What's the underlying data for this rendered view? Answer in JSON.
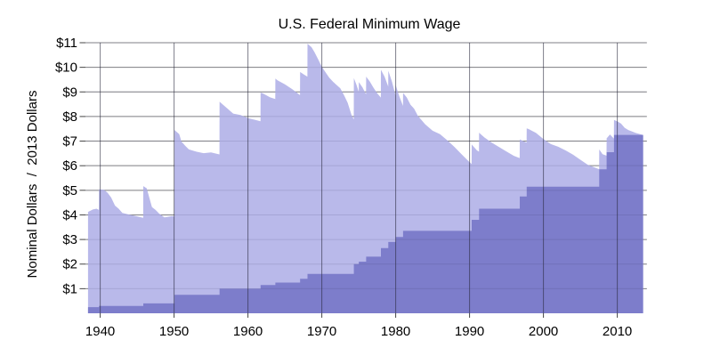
{
  "page": {
    "background": "#ffffff"
  },
  "chart_data": {
    "type": "area",
    "title": "U.S. Federal Minimum Wage",
    "ylabel": "Nominal Dollars  /  2013 Dollars",
    "xlabel": "",
    "xlim": [
      1938,
      2014
    ],
    "ylim": [
      0,
      11
    ],
    "grid": true,
    "legend": "none",
    "x_ticks": [
      1940,
      1950,
      1960,
      1970,
      1980,
      1990,
      2000,
      2010
    ],
    "y_ticks": [
      {
        "value": 1,
        "label": "$1"
      },
      {
        "value": 2,
        "label": "$2"
      },
      {
        "value": 3,
        "label": "$3"
      },
      {
        "value": 4,
        "label": "$4"
      },
      {
        "value": 5,
        "label": "$5"
      },
      {
        "value": 6,
        "label": "$6"
      },
      {
        "value": 7,
        "label": "$7"
      },
      {
        "value": 8,
        "label": "$8"
      },
      {
        "value": 9,
        "label": "$9"
      },
      {
        "value": 10,
        "label": "$10"
      },
      {
        "value": 11,
        "label": "$11"
      }
    ],
    "series": [
      {
        "name": "2013 Dollars",
        "type": "area",
        "color": "#b9b9ea",
        "points": [
          [
            1938.35,
            4.12
          ],
          [
            1939.0,
            4.22
          ],
          [
            1939.5,
            4.25
          ],
          [
            1939.82,
            4.2
          ],
          [
            1939.83,
            5.04
          ],
          [
            1940.5,
            5.02
          ],
          [
            1941.0,
            4.9
          ],
          [
            1941.5,
            4.7
          ],
          [
            1942.0,
            4.38
          ],
          [
            1942.5,
            4.25
          ],
          [
            1943.0,
            4.08
          ],
          [
            1944.0,
            4.01
          ],
          [
            1945.0,
            3.94
          ],
          [
            1945.82,
            3.88
          ],
          [
            1945.83,
            5.17
          ],
          [
            1946.3,
            5.08
          ],
          [
            1946.6,
            4.75
          ],
          [
            1947.0,
            4.32
          ],
          [
            1947.5,
            4.2
          ],
          [
            1948.0,
            4.05
          ],
          [
            1948.7,
            3.9
          ],
          [
            1949.3,
            3.93
          ],
          [
            1949.8,
            3.95
          ],
          [
            1950.05,
            3.93
          ],
          [
            1950.06,
            7.45
          ],
          [
            1950.7,
            7.28
          ],
          [
            1951.0,
            6.98
          ],
          [
            1951.6,
            6.78
          ],
          [
            1952.0,
            6.66
          ],
          [
            1953.0,
            6.57
          ],
          [
            1954.0,
            6.51
          ],
          [
            1955.0,
            6.54
          ],
          [
            1956.15,
            6.46
          ],
          [
            1956.16,
            8.6
          ],
          [
            1957.0,
            8.38
          ],
          [
            1958.0,
            8.12
          ],
          [
            1959.0,
            8.06
          ],
          [
            1960.0,
            7.93
          ],
          [
            1961.0,
            7.86
          ],
          [
            1961.7,
            7.81
          ],
          [
            1961.71,
            8.97
          ],
          [
            1962.0,
            8.94
          ],
          [
            1963.0,
            8.78
          ],
          [
            1963.7,
            8.71
          ],
          [
            1963.71,
            9.54
          ],
          [
            1964.0,
            9.47
          ],
          [
            1965.0,
            9.31
          ],
          [
            1966.0,
            9.11
          ],
          [
            1967.05,
            8.87
          ],
          [
            1967.06,
            9.81
          ],
          [
            1967.6,
            9.7
          ],
          [
            1968.05,
            9.62
          ],
          [
            1968.06,
            10.96
          ],
          [
            1968.6,
            10.82
          ],
          [
            1969.0,
            10.62
          ],
          [
            1969.5,
            10.33
          ],
          [
            1970.0,
            10.02
          ],
          [
            1970.5,
            9.8
          ],
          [
            1971.0,
            9.58
          ],
          [
            1971.5,
            9.42
          ],
          [
            1972.0,
            9.28
          ],
          [
            1972.5,
            9.15
          ],
          [
            1973.0,
            8.87
          ],
          [
            1973.5,
            8.56
          ],
          [
            1974.0,
            8.08
          ],
          [
            1974.33,
            7.88
          ],
          [
            1974.34,
            9.56
          ],
          [
            1974.7,
            9.28
          ],
          [
            1975.0,
            9.0
          ],
          [
            1975.01,
            9.4
          ],
          [
            1975.5,
            9.18
          ],
          [
            1975.99,
            8.9
          ],
          [
            1976.0,
            9.62
          ],
          [
            1976.5,
            9.42
          ],
          [
            1977.0,
            9.17
          ],
          [
            1977.5,
            8.95
          ],
          [
            1977.99,
            8.77
          ],
          [
            1978.0,
            9.9
          ],
          [
            1978.5,
            9.62
          ],
          [
            1978.99,
            9.22
          ],
          [
            1979.0,
            9.86
          ],
          [
            1979.5,
            9.42
          ],
          [
            1979.99,
            8.85
          ],
          [
            1980.0,
            9.27
          ],
          [
            1980.5,
            8.82
          ],
          [
            1980.99,
            8.43
          ],
          [
            1981.0,
            8.96
          ],
          [
            1981.5,
            8.77
          ],
          [
            1982.0,
            8.48
          ],
          [
            1982.5,
            8.32
          ],
          [
            1983.0,
            8.03
          ],
          [
            1984.0,
            7.68
          ],
          [
            1985.0,
            7.42
          ],
          [
            1986.0,
            7.28
          ],
          [
            1987.0,
            7.03
          ],
          [
            1988.0,
            6.75
          ],
          [
            1989.0,
            6.44
          ],
          [
            1990.0,
            6.14
          ],
          [
            1990.28,
            6.07
          ],
          [
            1990.29,
            6.86
          ],
          [
            1991.0,
            6.62
          ],
          [
            1991.28,
            6.57
          ],
          [
            1991.29,
            7.34
          ],
          [
            1992.0,
            7.15
          ],
          [
            1993.0,
            6.94
          ],
          [
            1994.0,
            6.76
          ],
          [
            1995.0,
            6.58
          ],
          [
            1996.0,
            6.4
          ],
          [
            1996.78,
            6.31
          ],
          [
            1996.79,
            7.07
          ],
          [
            1997.5,
            6.97
          ],
          [
            1997.72,
            6.94
          ],
          [
            1997.73,
            7.52
          ],
          [
            1998.0,
            7.49
          ],
          [
            1999.0,
            7.33
          ],
          [
            2000.0,
            7.08
          ],
          [
            2001.0,
            6.88
          ],
          [
            2002.0,
            6.77
          ],
          [
            2003.0,
            6.62
          ],
          [
            2004.0,
            6.45
          ],
          [
            2005.0,
            6.24
          ],
          [
            2006.0,
            6.04
          ],
          [
            2007.0,
            5.92
          ],
          [
            2007.54,
            5.86
          ],
          [
            2007.55,
            6.66
          ],
          [
            2008.0,
            6.47
          ],
          [
            2008.54,
            6.41
          ],
          [
            2008.55,
            7.11
          ],
          [
            2009.0,
            7.27
          ],
          [
            2009.3,
            7.18
          ],
          [
            2009.54,
            7.1
          ],
          [
            2009.55,
            7.86
          ],
          [
            2010.0,
            7.8
          ],
          [
            2010.5,
            7.71
          ],
          [
            2011.0,
            7.54
          ],
          [
            2011.5,
            7.45
          ],
          [
            2012.0,
            7.39
          ],
          [
            2012.5,
            7.33
          ],
          [
            2013.0,
            7.29
          ],
          [
            2013.5,
            7.25
          ]
        ]
      },
      {
        "name": "Nominal Dollars",
        "type": "step-area",
        "color": "#7d7dcb",
        "end_x": 2013.5,
        "points": [
          [
            1938.35,
            0.25
          ],
          [
            1939.83,
            0.3
          ],
          [
            1945.83,
            0.4
          ],
          [
            1950.06,
            0.75
          ],
          [
            1956.16,
            1.0
          ],
          [
            1961.71,
            1.15
          ],
          [
            1963.71,
            1.25
          ],
          [
            1967.06,
            1.4
          ],
          [
            1968.06,
            1.6
          ],
          [
            1974.34,
            2.0
          ],
          [
            1975.01,
            2.1
          ],
          [
            1976.0,
            2.3
          ],
          [
            1978.0,
            2.65
          ],
          [
            1979.0,
            2.9
          ],
          [
            1980.0,
            3.1
          ],
          [
            1981.0,
            3.35
          ],
          [
            1990.29,
            3.8
          ],
          [
            1991.29,
            4.25
          ],
          [
            1996.79,
            4.75
          ],
          [
            1997.73,
            5.15
          ],
          [
            2007.55,
            5.85
          ],
          [
            2008.55,
            6.55
          ],
          [
            2009.55,
            7.25
          ]
        ]
      }
    ]
  },
  "colors": {
    "grid_horizontal": "#8c8c8c",
    "grid_vertical": "#28283c",
    "tick": "#444444",
    "text": "#000000",
    "background": "#ffffff"
  }
}
